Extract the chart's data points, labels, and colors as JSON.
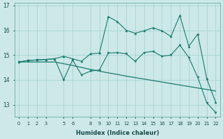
{
  "xlabel": "Humidex (Indice chaleur)",
  "bg_color": "#cce8e8",
  "line_color": "#1a7a6e",
  "grid_color": "#aad4d4",
  "x": [
    0,
    1,
    2,
    3,
    4,
    5,
    6,
    7,
    8,
    9,
    10,
    11,
    12,
    13,
    14,
    15,
    16,
    17,
    18,
    19,
    20,
    21,
    22
  ],
  "line_trend": [
    14.72,
    14.72,
    14.72,
    14.72,
    14.72,
    14.65,
    14.58,
    14.5,
    14.42,
    14.35,
    14.28,
    14.22,
    14.15,
    14.09,
    14.03,
    13.97,
    13.91,
    13.85,
    13.79,
    13.73,
    13.67,
    13.61,
    13.55
  ],
  "line_upper": [
    14.72,
    14.78,
    14.8,
    14.82,
    14.85,
    14.95,
    14.85,
    14.75,
    15.05,
    15.08,
    16.55,
    16.35,
    16.0,
    15.88,
    15.98,
    16.1,
    15.98,
    15.75,
    16.6,
    15.35,
    15.85,
    14.05,
    13.1
  ],
  "line_lower": [
    14.72,
    14.78,
    14.8,
    14.82,
    14.85,
    14.0,
    14.8,
    14.2,
    14.35,
    14.4,
    15.08,
    15.1,
    15.05,
    14.75,
    15.1,
    15.15,
    14.95,
    15.0,
    15.4,
    14.9,
    14.1,
    13.08,
    12.68
  ],
  "ylim": [
    12.5,
    17.1
  ],
  "ytick_min": 13,
  "ytick_max": 17,
  "ytick_step": 1,
  "xticks": [
    0,
    1,
    2,
    3,
    5,
    6,
    8,
    9,
    10,
    11,
    12,
    13,
    14,
    15,
    16,
    17,
    18,
    19,
    20,
    21,
    22
  ]
}
